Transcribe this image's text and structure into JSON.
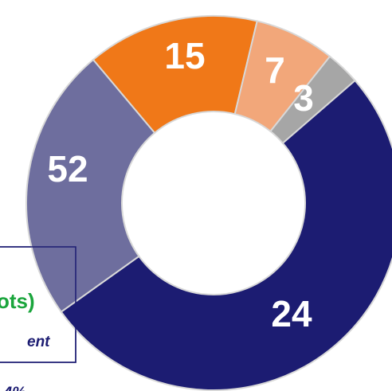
{
  "chart_data": {
    "type": "donut",
    "values": [
      15,
      7,
      3,
      52,
      24
    ],
    "colors": [
      "#f07818",
      "#f2a77a",
      "#a6a6a6",
      "#1c1c72",
      "#6e6e9e"
    ],
    "annotations": [
      "ots)",
      "ent",
      "4%"
    ]
  }
}
